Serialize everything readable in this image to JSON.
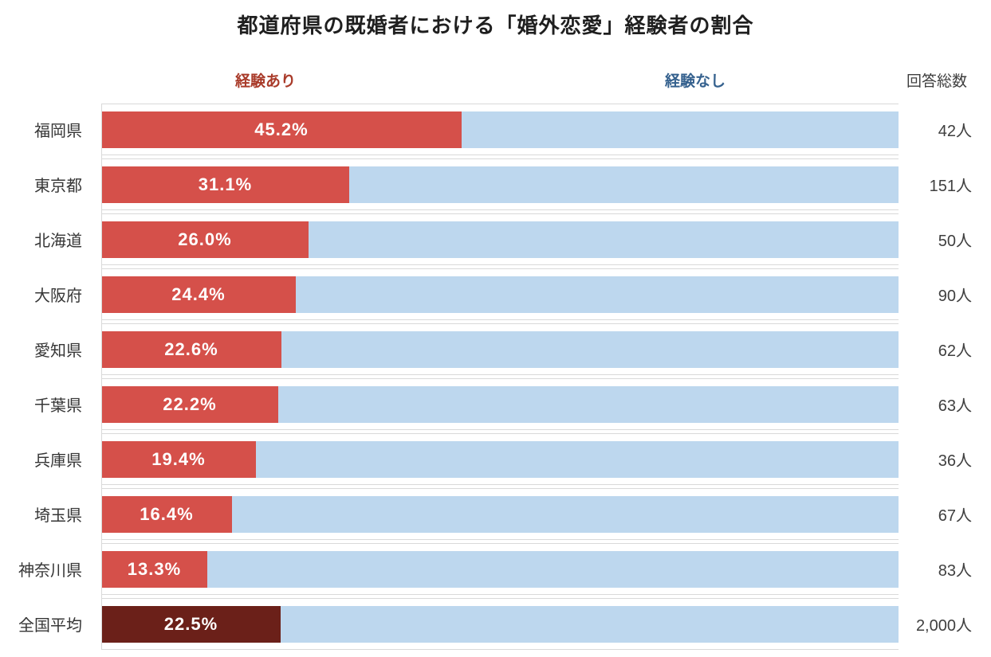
{
  "title": "都道府県の既婚者における「婚外恋愛」経験者の割合",
  "header": {
    "experienced_label": "経験あり",
    "not_experienced_label": "経験なし",
    "total_label": "回答総数"
  },
  "colors": {
    "experienced_bar": "#d5504a",
    "not_experienced_bar": "#bdd7ee",
    "national_average_bar": "#6b2019",
    "experienced_label_text": "#a93b2a",
    "not_experienced_label_text": "#35618e",
    "grid_line": "#d9d9d9"
  },
  "chart_data": {
    "type": "bar",
    "orientation": "horizontal",
    "stacked": true,
    "title": "都道府県の既婚者における「婚外恋愛」経験者の割合",
    "xlim": [
      0,
      100
    ],
    "grid": false,
    "legend_position": "top",
    "categories": [
      "福岡県",
      "東京都",
      "北海道",
      "大阪府",
      "愛知県",
      "千葉県",
      "兵庫県",
      "埼玉県",
      "神奈川県",
      "全国平均"
    ],
    "series": [
      {
        "name": "経験あり",
        "values": [
          45.2,
          31.1,
          26.0,
          24.4,
          22.6,
          22.2,
          19.4,
          16.4,
          13.3,
          22.5
        ]
      },
      {
        "name": "経験なし",
        "values": [
          54.8,
          68.9,
          74.0,
          75.6,
          77.4,
          77.8,
          80.6,
          83.6,
          86.7,
          77.5
        ]
      }
    ],
    "respondent_totals": [
      42,
      151,
      50,
      90,
      62,
      63,
      36,
      67,
      83,
      2000
    ]
  },
  "rows": [
    {
      "label": "福岡県",
      "pct": 45.2,
      "pct_label": "45.2%",
      "total": "42人",
      "highlight": false
    },
    {
      "label": "東京都",
      "pct": 31.1,
      "pct_label": "31.1%",
      "total": "151人",
      "highlight": false
    },
    {
      "label": "北海道",
      "pct": 26.0,
      "pct_label": "26.0%",
      "total": "50人",
      "highlight": false
    },
    {
      "label": "大阪府",
      "pct": 24.4,
      "pct_label": "24.4%",
      "total": "90人",
      "highlight": false
    },
    {
      "label": "愛知県",
      "pct": 22.6,
      "pct_label": "22.6%",
      "total": "62人",
      "highlight": false
    },
    {
      "label": "千葉県",
      "pct": 22.2,
      "pct_label": "22.2%",
      "total": "63人",
      "highlight": false
    },
    {
      "label": "兵庫県",
      "pct": 19.4,
      "pct_label": "19.4%",
      "total": "36人",
      "highlight": false
    },
    {
      "label": "埼玉県",
      "pct": 16.4,
      "pct_label": "16.4%",
      "total": "67人",
      "highlight": false
    },
    {
      "label": "神奈川県",
      "pct": 13.3,
      "pct_label": "13.3%",
      "total": "83人",
      "highlight": false
    },
    {
      "label": "全国平均",
      "pct": 22.5,
      "pct_label": "22.5%",
      "total": "2,000人",
      "highlight": true
    }
  ]
}
